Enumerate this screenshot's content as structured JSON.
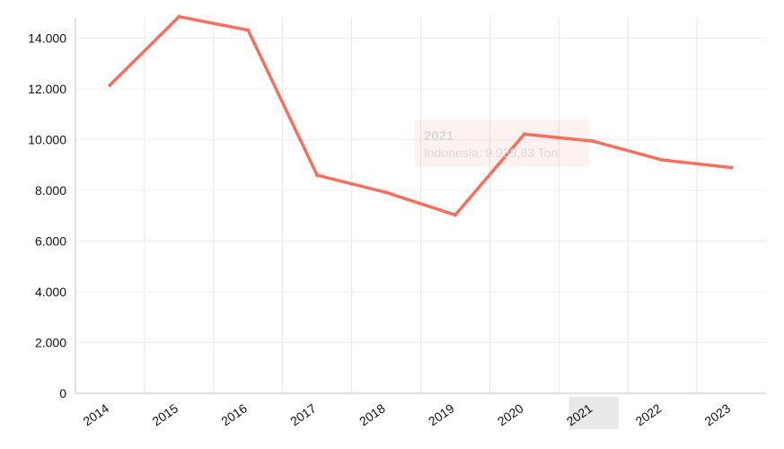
{
  "chart_data": {
    "type": "line",
    "categories": [
      "2014",
      "2015",
      "2016",
      "2017",
      "2018",
      "2019",
      "2020",
      "2021",
      "2022",
      "2023"
    ],
    "series": [
      {
        "name": "Indonesia",
        "color": "#f5705e",
        "values": [
          12150,
          14850,
          14320,
          8600,
          7920,
          7030,
          10220,
          9939.83,
          9200,
          8900
        ]
      }
    ],
    "ylim": [
      0,
      14800
    ],
    "yticks": [
      0,
      2000,
      4000,
      6000,
      8000,
      10000,
      12000,
      14000
    ],
    "ytick_labels": [
      "0",
      "2.000",
      "4.000",
      "6.000",
      "8.000",
      "10.000",
      "12.000",
      "14.000"
    ],
    "grid": true,
    "tooltip": {
      "active_category": "2021",
      "title": "2021",
      "text": "Indonesia: 9.939,83 Ton"
    }
  }
}
